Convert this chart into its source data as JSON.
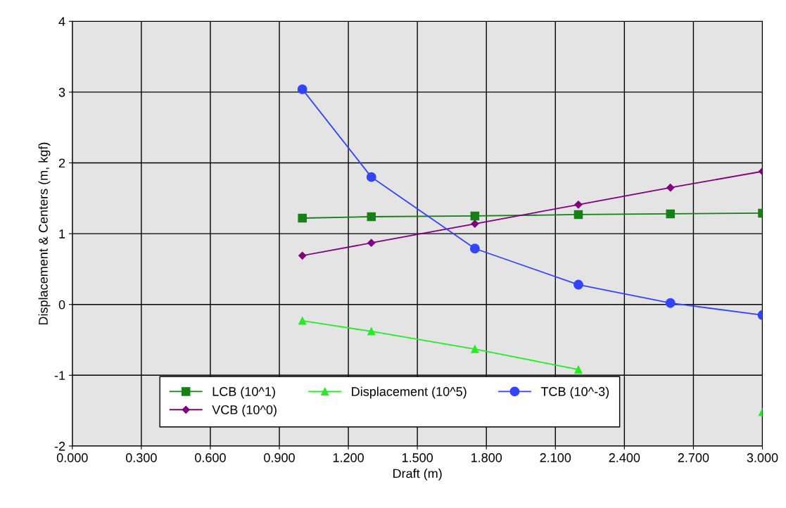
{
  "chart_data": {
    "type": "line",
    "xlabel": "Draft (m)",
    "ylabel": "Displacement & Centers (m, kgf)",
    "x": [
      1.0,
      1.3,
      1.75,
      2.2,
      2.6,
      3.0
    ],
    "series": [
      {
        "name": "LCB (10^1)",
        "color": "#168016",
        "marker": "square",
        "values": [
          1.22,
          1.24,
          1.25,
          1.27,
          1.28,
          1.29
        ]
      },
      {
        "name": "VCB (10^0)",
        "color": "#800080",
        "marker": "diamond",
        "values": [
          0.69,
          0.87,
          1.14,
          1.41,
          1.65,
          1.88
        ]
      },
      {
        "name": "Displacement (10^5)",
        "color": "#22ee22",
        "marker": "triangle",
        "values": [
          -0.23,
          -0.38,
          -0.63,
          -0.92,
          null,
          -1.52
        ]
      },
      {
        "name": "TCB (10^-3)",
        "color": "#3344ff",
        "marker": "circle",
        "values": [
          3.04,
          1.8,
          0.79,
          0.28,
          0.02,
          -0.15
        ]
      }
    ],
    "xlim": [
      0,
      3.0
    ],
    "xticks": [
      {
        "value": 0,
        "label": "0.000"
      },
      {
        "value": 0.3,
        "label": "0.300"
      },
      {
        "value": 0.6,
        "label": "0.600"
      },
      {
        "value": 0.9,
        "label": "0.900"
      },
      {
        "value": 1.2,
        "label": "1.200"
      },
      {
        "value": 1.5,
        "label": "1.500"
      },
      {
        "value": 1.8,
        "label": "1.800"
      },
      {
        "value": 2.1,
        "label": "2.100"
      },
      {
        "value": 2.4,
        "label": "2.400"
      },
      {
        "value": 2.7,
        "label": "2.700"
      },
      {
        "value": 3.0,
        "label": "3.000"
      }
    ],
    "ylim": [
      -2,
      4
    ],
    "yticks": [
      -2,
      -1,
      0,
      1,
      2,
      3,
      4
    ],
    "grid": true,
    "legend": "bottom",
    "line_style": "solid"
  }
}
